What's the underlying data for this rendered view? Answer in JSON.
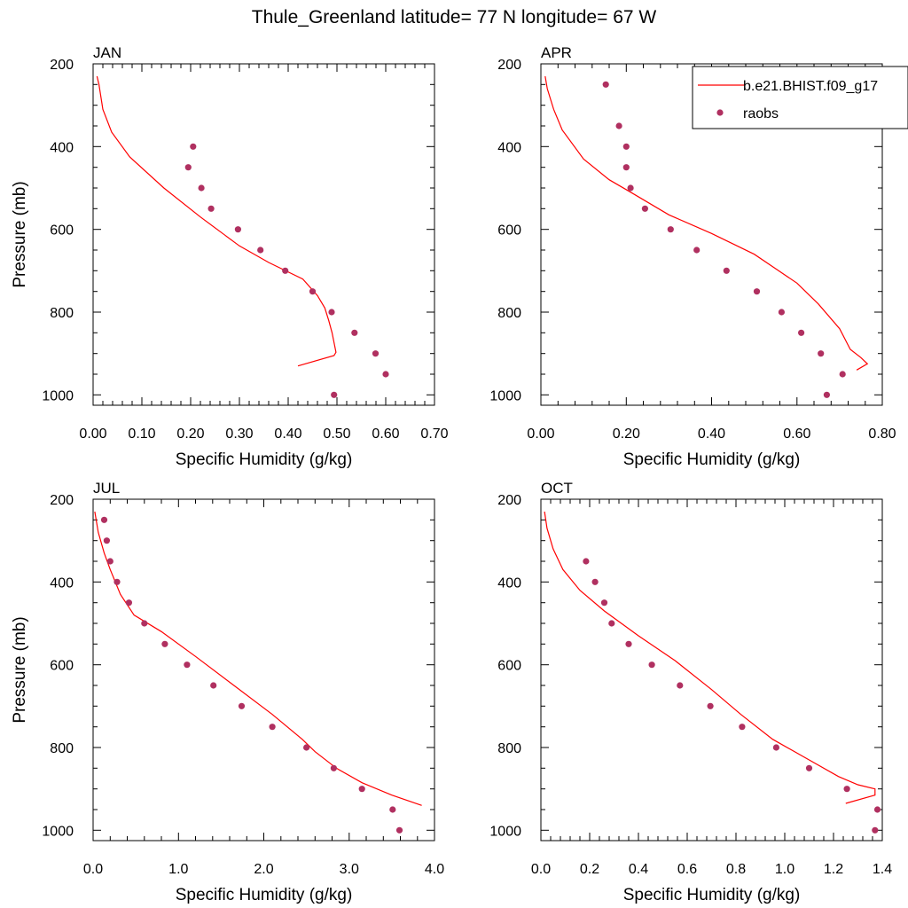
{
  "title": "Thule_Greenland  latitude= 77 N longitude= 67 W",
  "colors": {
    "model_line": "#ff0000",
    "obs_marker": "#b03060",
    "axes": "#000000"
  },
  "chart_data": [
    {
      "type": "line+scatter",
      "panel_label": "JAN",
      "xlabel": "Specific Humidity (g/kg)",
      "ylabel": "Pressure (mb)",
      "xlim": [
        0,
        0.7
      ],
      "ylim": [
        200,
        1025
      ],
      "y_reversed": true,
      "xticks": [
        0,
        0.1,
        0.2,
        0.3,
        0.4,
        0.5,
        0.6,
        0.7
      ],
      "xtick_labels": [
        "0.00",
        "0.10",
        "0.20",
        "0.30",
        "0.40",
        "0.50",
        "0.60",
        "0.70"
      ],
      "yticks": [
        200,
        400,
        600,
        800,
        1000
      ],
      "ytick_labels": [
        "200",
        "400",
        "600",
        "800",
        "1000"
      ],
      "model": {
        "x": [
          0.008,
          0.012,
          0.02,
          0.038,
          0.075,
          0.145,
          0.22,
          0.3,
          0.36,
          0.43,
          0.46,
          0.475,
          0.483,
          0.49,
          0.495,
          0.498,
          0.494,
          0.42
        ],
        "y": [
          230,
          250,
          310,
          365,
          425,
          500,
          570,
          640,
          680,
          720,
          760,
          790,
          820,
          850,
          880,
          897,
          905,
          930
        ]
      },
      "obs": {
        "x": [
          0.205,
          0.195,
          0.222,
          0.242,
          0.297,
          0.343,
          0.394,
          0.45,
          0.489,
          0.536,
          0.579,
          0.6,
          0.494
        ],
        "y": [
          400,
          450,
          500,
          550,
          600,
          650,
          700,
          750,
          800,
          850,
          900,
          950,
          1000
        ]
      }
    },
    {
      "type": "line+scatter",
      "panel_label": "APR",
      "xlabel": "Specific Humidity (g/kg)",
      "ylabel": "",
      "xlim": [
        0,
        0.8
      ],
      "ylim": [
        200,
        1025
      ],
      "y_reversed": true,
      "xticks": [
        0,
        0.2,
        0.4,
        0.6,
        0.8
      ],
      "xtick_labels": [
        "0.00",
        "0.20",
        "0.40",
        "0.60",
        "0.80"
      ],
      "yticks": [
        200,
        400,
        600,
        800,
        1000
      ],
      "ytick_labels": [
        "200",
        "400",
        "600",
        "800",
        "1000"
      ],
      "legend": {
        "position": "top-right",
        "entries": [
          {
            "label": "b.e21.BHIST.f09_g17",
            "kind": "line"
          },
          {
            "label": "raobs",
            "kind": "marker"
          }
        ]
      },
      "model": {
        "x": [
          0.01,
          0.015,
          0.03,
          0.05,
          0.1,
          0.16,
          0.21,
          0.3,
          0.4,
          0.5,
          0.55,
          0.6,
          0.65,
          0.7,
          0.725,
          0.75,
          0.765,
          0.74
        ],
        "y": [
          230,
          260,
          310,
          360,
          430,
          480,
          510,
          565,
          610,
          660,
          695,
          730,
          780,
          840,
          890,
          910,
          925,
          940
        ]
      },
      "obs": {
        "x": [
          0.152,
          0.183,
          0.2,
          0.2,
          0.21,
          0.244,
          0.304,
          0.365,
          0.435,
          0.506,
          0.564,
          0.61,
          0.656,
          0.707,
          0.67
        ],
        "y": [
          250,
          350,
          400,
          450,
          500,
          550,
          600,
          650,
          700,
          750,
          800,
          850,
          900,
          950,
          1000
        ]
      }
    },
    {
      "type": "line+scatter",
      "panel_label": "JUL",
      "xlabel": "Specific Humidity (g/kg)",
      "ylabel": "Pressure (mb)",
      "xlim": [
        0,
        4
      ],
      "ylim": [
        200,
        1025
      ],
      "y_reversed": true,
      "xticks": [
        0,
        1,
        2,
        3,
        4
      ],
      "xtick_labels": [
        "0.0",
        "1.0",
        "2.0",
        "3.0",
        "4.0"
      ],
      "yticks": [
        200,
        400,
        600,
        800,
        1000
      ],
      "ytick_labels": [
        "200",
        "400",
        "600",
        "800",
        "1000"
      ],
      "model": {
        "x": [
          0.02,
          0.06,
          0.13,
          0.2,
          0.32,
          0.48,
          0.8,
          1.2,
          1.65,
          2.1,
          2.45,
          2.6,
          2.85,
          3.15,
          3.5,
          3.85
        ],
        "y": [
          230,
          280,
          330,
          370,
          430,
          480,
          520,
          580,
          650,
          720,
          780,
          810,
          850,
          885,
          915,
          940
        ]
      },
      "obs": {
        "x": [
          0.13,
          0.16,
          0.2,
          0.28,
          0.42,
          0.6,
          0.84,
          1.1,
          1.41,
          1.74,
          2.1,
          2.5,
          2.82,
          3.15,
          3.51,
          3.59
        ],
        "y": [
          250,
          300,
          350,
          400,
          450,
          500,
          550,
          600,
          650,
          700,
          750,
          800,
          850,
          900,
          950,
          1000
        ]
      }
    },
    {
      "type": "line+scatter",
      "panel_label": "OCT",
      "xlabel": "Specific Humidity (g/kg)",
      "ylabel": "",
      "xlim": [
        0,
        1.4
      ],
      "ylim": [
        200,
        1025
      ],
      "y_reversed": true,
      "xticks": [
        0,
        0.2,
        0.4,
        0.6,
        0.8,
        1.0,
        1.2,
        1.4
      ],
      "xtick_labels": [
        "0.0",
        "0.2",
        "0.4",
        "0.6",
        "0.8",
        "1.0",
        "1.2",
        "1.4"
      ],
      "yticks": [
        200,
        400,
        600,
        800,
        1000
      ],
      "ytick_labels": [
        "200",
        "400",
        "600",
        "800",
        "1000"
      ],
      "model": {
        "x": [
          0.015,
          0.025,
          0.05,
          0.09,
          0.16,
          0.26,
          0.4,
          0.55,
          0.7,
          0.82,
          0.95,
          1.1,
          1.22,
          1.3,
          1.37,
          1.37,
          1.25
        ],
        "y": [
          230,
          270,
          320,
          370,
          420,
          470,
          530,
          590,
          660,
          720,
          780,
          830,
          870,
          890,
          900,
          915,
          935
        ]
      },
      "obs": {
        "x": [
          0.185,
          0.222,
          0.26,
          0.29,
          0.36,
          0.455,
          0.57,
          0.695,
          0.825,
          0.965,
          1.1,
          1.255,
          1.38,
          1.37
        ],
        "y": [
          350,
          400,
          450,
          500,
          550,
          600,
          650,
          700,
          750,
          800,
          850,
          900,
          950,
          1000
        ]
      }
    }
  ]
}
